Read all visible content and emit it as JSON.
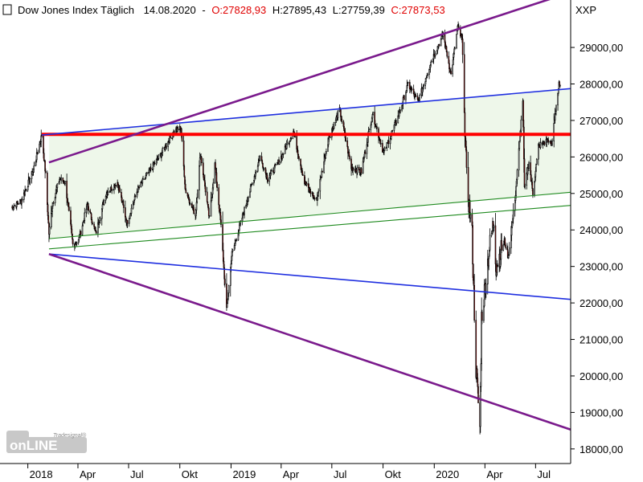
{
  "header": {
    "title": "Dow Jones Index Täglich",
    "date": "14.08.2020",
    "sep": "-",
    "open": "O:27828,93",
    "high": "H:27895,43",
    "low": "L:27759,39",
    "close": "C:27873,53",
    "symbol": "XXP"
  },
  "colors": {
    "up": "#ffffff",
    "down": "#b01818",
    "wick": "#000000",
    "support_resistance": "#ff0000",
    "blue_lines": "#1f2fe0",
    "purple_lines": "#7a1a8c",
    "green_lines": "#1e8a1e",
    "channel_fill": "#eef7ea"
  },
  "watermark": "Tradesignal online",
  "chart_data": {
    "type": "candlestick",
    "title": "Dow Jones Index Täglich",
    "ylim": [
      17600,
      30300
    ],
    "y_ticks": [
      "29000,00",
      "28000,00",
      "27000,00",
      "26000,00",
      "25000,00",
      "24000,00",
      "23000,00",
      "22000,00",
      "21000,00",
      "20000,00",
      "19000,00",
      "18000,00"
    ],
    "x_labels": [
      "2018",
      "Apr",
      "Jul",
      "Okt",
      "2019",
      "Apr",
      "Jul",
      "Okt",
      "2020",
      "Apr",
      "Jul"
    ],
    "last_bar": {
      "date": "14.08.2020",
      "open": 27828.93,
      "high": 27895.43,
      "low": 27759.39,
      "close": 27873.53
    },
    "approx_close_path": [
      [
        "2017-12-01",
        24600
      ],
      [
        "2017-12-20",
        24800
      ],
      [
        "2018-01-10",
        25600
      ],
      [
        "2018-01-26",
        26600
      ],
      [
        "2018-02-02",
        25500
      ],
      [
        "2018-02-08",
        23900
      ],
      [
        "2018-02-14",
        24700
      ],
      [
        "2018-02-27",
        25400
      ],
      [
        "2018-03-09",
        25300
      ],
      [
        "2018-03-23",
        23600
      ],
      [
        "2018-04-02",
        23700
      ],
      [
        "2018-04-18",
        24700
      ],
      [
        "2018-05-03",
        23900
      ],
      [
        "2018-05-21",
        25000
      ],
      [
        "2018-06-11",
        25300
      ],
      [
        "2018-06-28",
        24200
      ],
      [
        "2018-07-17",
        25100
      ],
      [
        "2018-08-07",
        25600
      ],
      [
        "2018-08-29",
        26100
      ],
      [
        "2018-09-21",
        26700
      ],
      [
        "2018-10-03",
        26800
      ],
      [
        "2018-10-11",
        25100
      ],
      [
        "2018-10-29",
        24400
      ],
      [
        "2018-11-07",
        26100
      ],
      [
        "2018-11-23",
        24300
      ],
      [
        "2018-12-03",
        25800
      ],
      [
        "2018-12-14",
        24100
      ],
      [
        "2018-12-24",
        21800
      ],
      [
        "2019-01-02",
        23300
      ],
      [
        "2019-01-24",
        24500
      ],
      [
        "2019-02-22",
        26000
      ],
      [
        "2019-03-08",
        25400
      ],
      [
        "2019-03-29",
        25900
      ],
      [
        "2019-04-23",
        26700
      ],
      [
        "2019-05-13",
        25300
      ],
      [
        "2019-06-03",
        24800
      ],
      [
        "2019-06-25",
        26500
      ],
      [
        "2019-07-15",
        27300
      ],
      [
        "2019-08-05",
        25700
      ],
      [
        "2019-08-23",
        25600
      ],
      [
        "2019-09-12",
        27200
      ],
      [
        "2019-10-02",
        26100
      ],
      [
        "2019-10-28",
        27100
      ],
      [
        "2019-11-15",
        28000
      ],
      [
        "2019-12-03",
        27500
      ],
      [
        "2019-12-27",
        28650
      ],
      [
        "2020-01-17",
        29350
      ],
      [
        "2020-01-31",
        28250
      ],
      [
        "2020-02-12",
        29550
      ],
      [
        "2020-02-20",
        29200
      ],
      [
        "2020-02-28",
        25400
      ],
      [
        "2020-03-09",
        23850
      ],
      [
        "2020-03-16",
        20200
      ],
      [
        "2020-03-23",
        18590
      ],
      [
        "2020-03-26",
        21600
      ],
      [
        "2020-04-08",
        23400
      ],
      [
        "2020-04-17",
        24250
      ],
      [
        "2020-04-21",
        23000
      ],
      [
        "2020-05-06",
        23700
      ],
      [
        "2020-05-13",
        23250
      ],
      [
        "2020-05-26",
        24995
      ],
      [
        "2020-06-08",
        27570
      ],
      [
        "2020-06-11",
        25100
      ],
      [
        "2020-06-19",
        25870
      ],
      [
        "2020-06-26",
        25000
      ],
      [
        "2020-07-06",
        26290
      ],
      [
        "2020-07-24",
        26470
      ],
      [
        "2020-07-30",
        26300
      ],
      [
        "2020-08-05",
        27200
      ],
      [
        "2020-08-12",
        27980
      ],
      [
        "2020-08-14",
        27870
      ]
    ],
    "overlay_lines": [
      {
        "kind": "horizontal",
        "color": "red",
        "y": 26620
      },
      {
        "kind": "trendline",
        "color": "blue",
        "from": [
          "2018-01-26",
          26600
        ],
        "to": [
          "2020-08-31",
          27870
        ]
      },
      {
        "kind": "trendline",
        "color": "blue",
        "from": [
          "2018-02-08",
          23340
        ],
        "to": [
          "2020-08-31",
          22100
        ]
      },
      {
        "kind": "trendline",
        "color": "purple",
        "from": [
          "2018-02-08",
          25850
        ],
        "to": [
          "2020-08-31",
          30500
        ]
      },
      {
        "kind": "trendline",
        "color": "purple",
        "from": [
          "2018-02-08",
          23340
        ],
        "to": [
          "2020-08-31",
          18540
        ]
      },
      {
        "kind": "trendline",
        "color": "green",
        "from": [
          "2018-02-08",
          23760
        ],
        "to": [
          "2020-08-31",
          25030
        ]
      },
      {
        "kind": "trendline",
        "color": "green",
        "from": [
          "2018-02-08",
          23480
        ],
        "to": [
          "2020-08-31",
          24670
        ]
      }
    ]
  }
}
